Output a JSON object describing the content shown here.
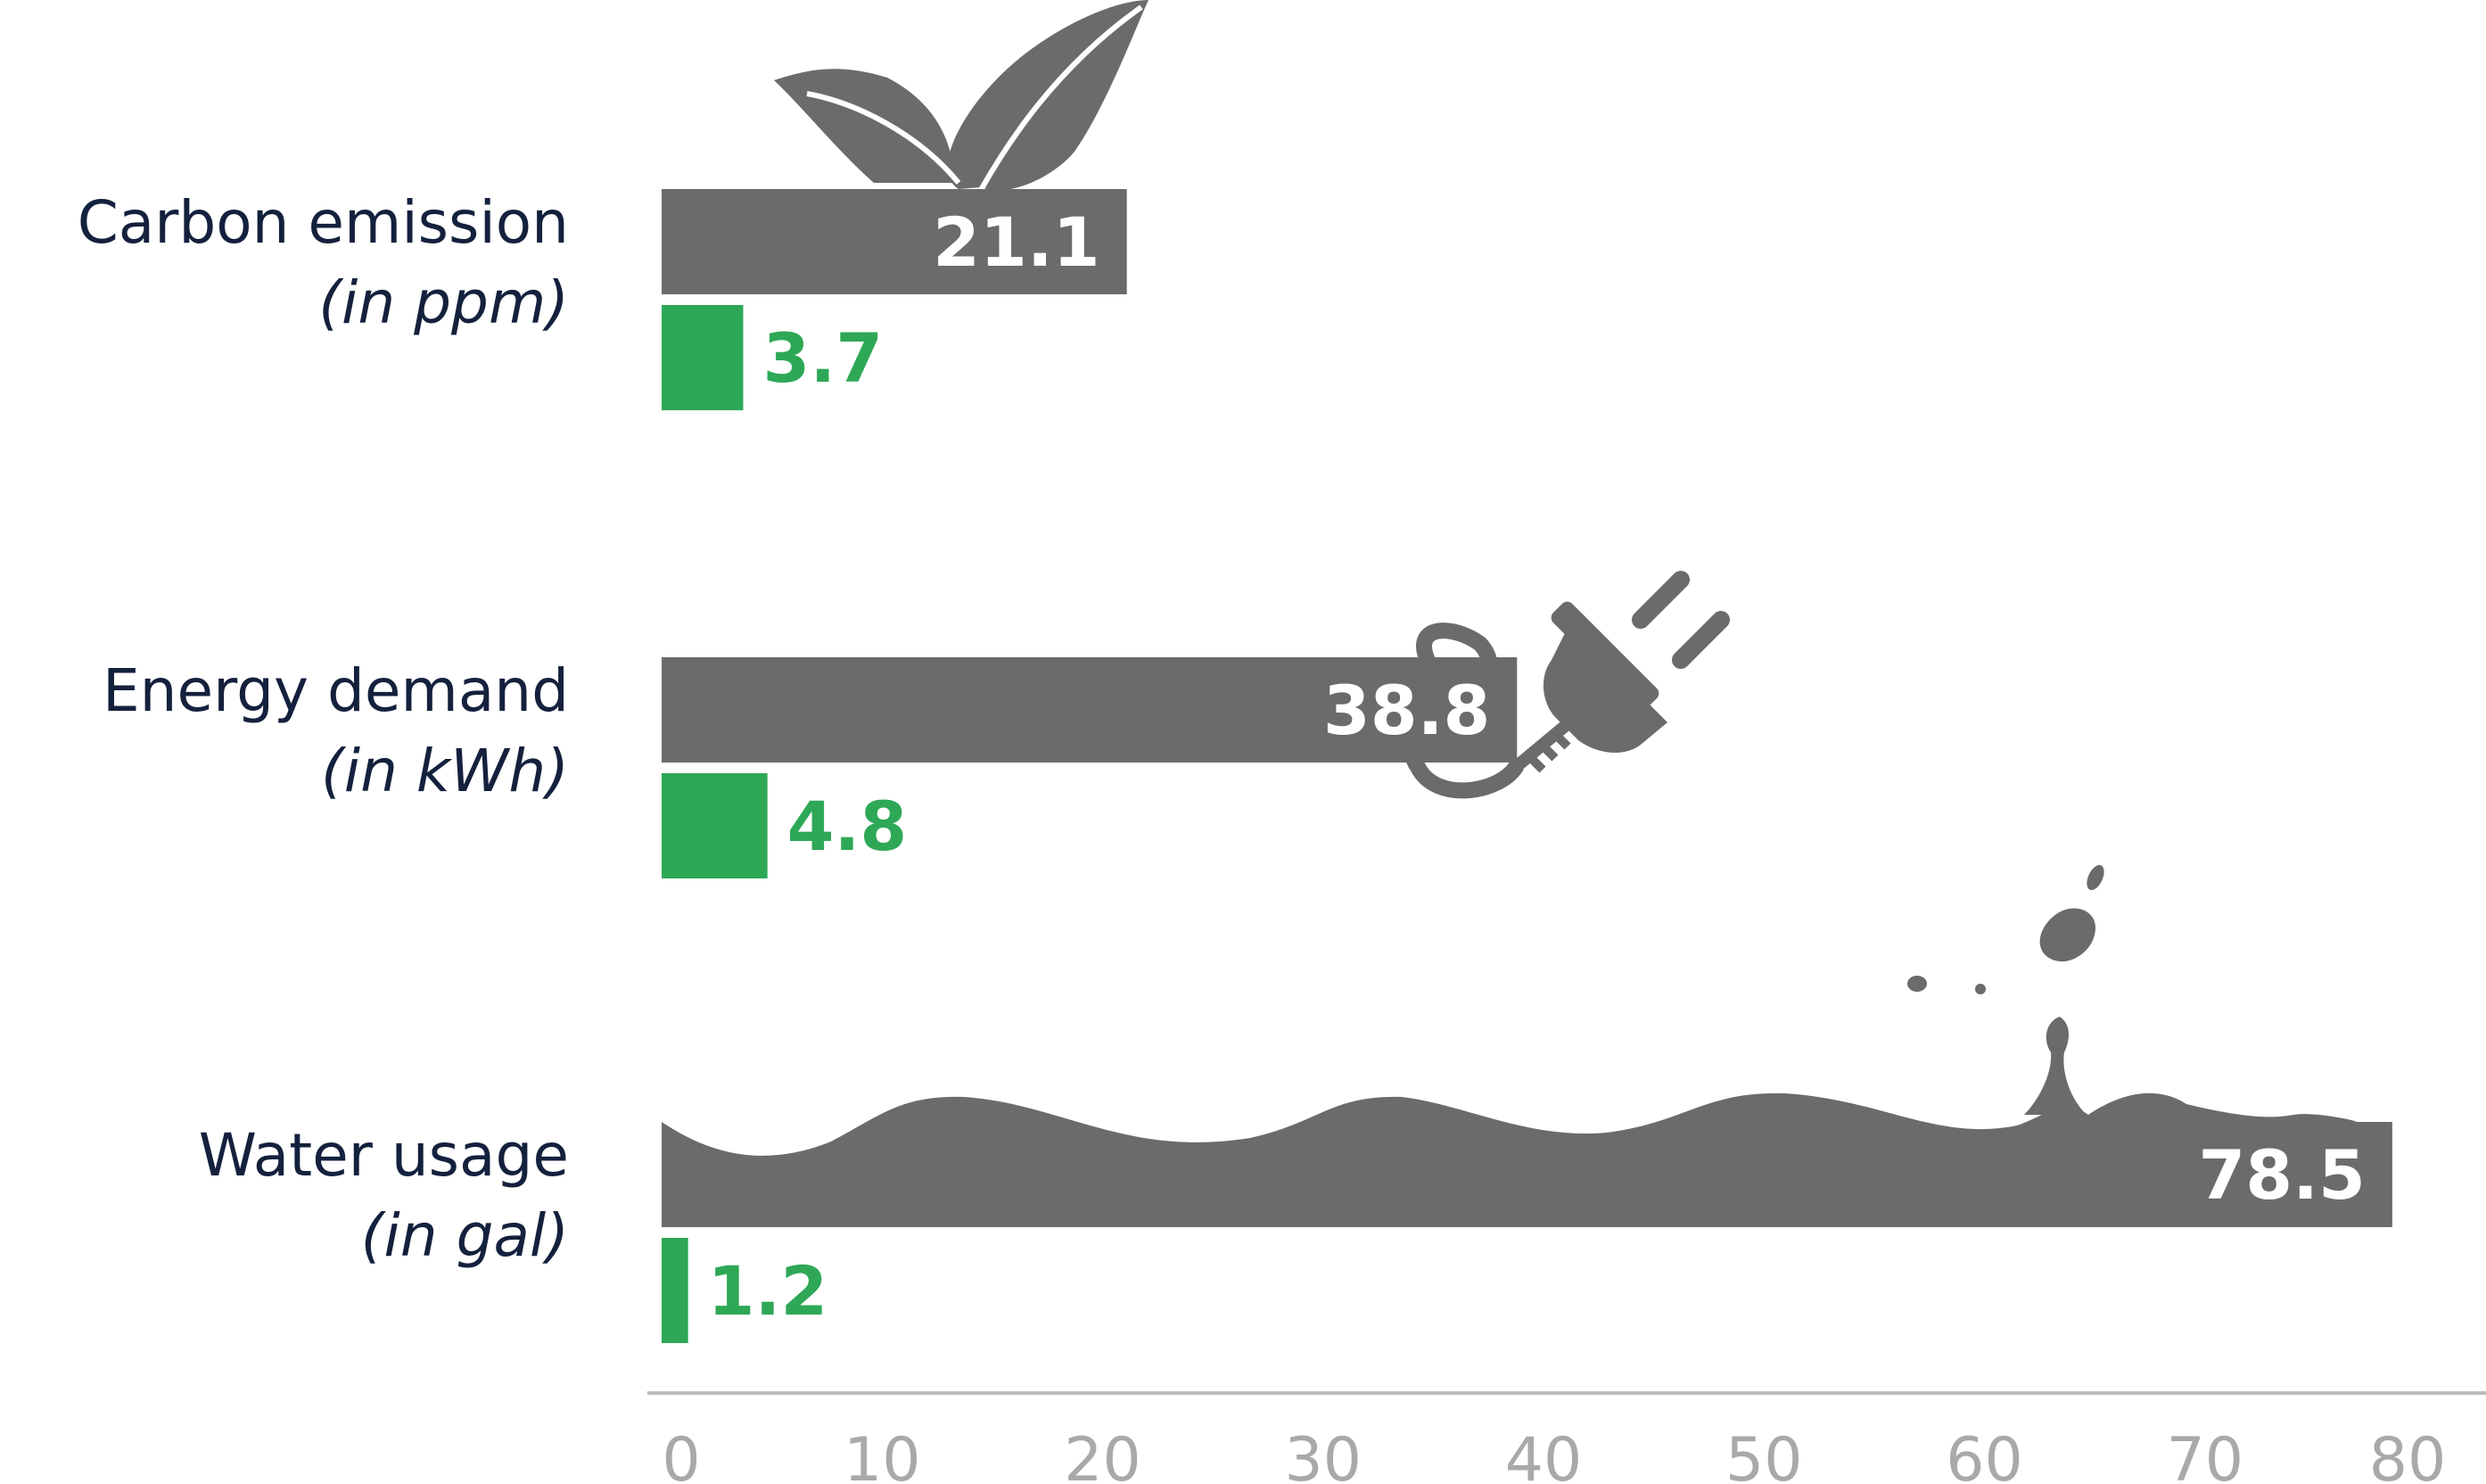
{
  "chart_data": {
    "type": "bar",
    "orientation": "horizontal",
    "categories": [
      "Carbon emission",
      "Energy demand",
      "Water usage"
    ],
    "category_units": [
      "(in ppm)",
      "(in kWh)",
      "(in gal)"
    ],
    "series": [
      {
        "values": [
          21.1,
          38.8,
          78.5
        ],
        "color": "#6b6b6b"
      },
      {
        "values": [
          3.7,
          4.8,
          1.2
        ],
        "color": "#2ea856"
      }
    ],
    "data_labels": [
      [
        "21.1",
        "38.8",
        "78.5"
      ],
      [
        "3.7",
        "4.8",
        "1.2"
      ]
    ],
    "x_ticks": [
      "0",
      "10",
      "20",
      "30",
      "40",
      "50",
      "60",
      "70",
      "80"
    ],
    "xlim": [
      0,
      80
    ],
    "grid": false,
    "legend": "none",
    "icons": [
      "leaves-icon",
      "plug-icon",
      "water-wave-icon"
    ],
    "colors": {
      "category_text": "#14213d",
      "axis": "#bdbdbd",
      "tick_text": "#a9a9a9",
      "gray_label": "#ffffff"
    }
  }
}
